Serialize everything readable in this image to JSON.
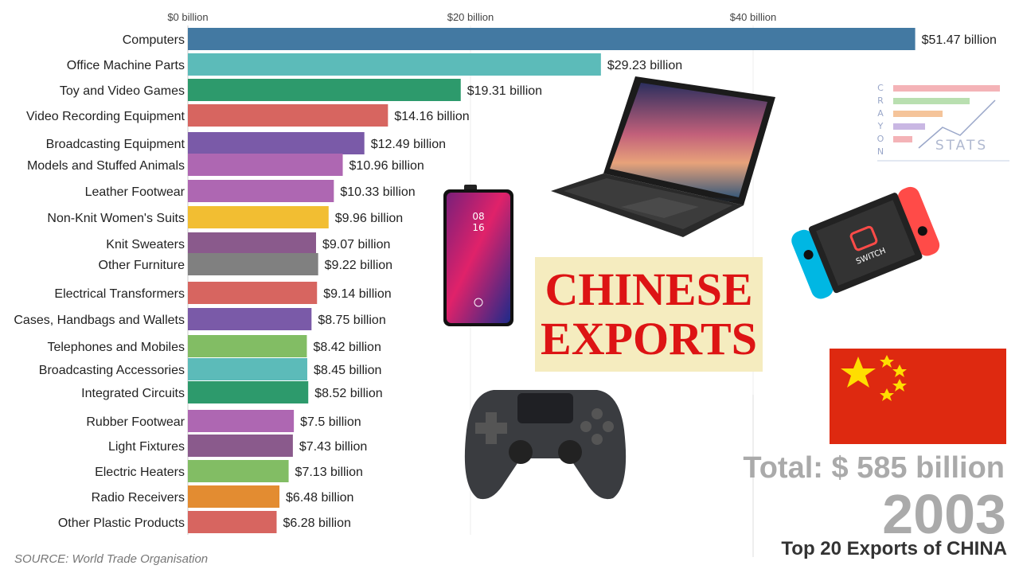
{
  "chart_data": {
    "type": "bar",
    "orientation": "horizontal",
    "xlim": [
      0,
      52
    ],
    "ticks": [
      0,
      20,
      40
    ],
    "tick_labels": [
      "$0 billion",
      "$20 billion",
      "$40 billion"
    ],
    "grid": true,
    "categories": [
      "Computers",
      "Office Machine Parts",
      "Toy and Video Games",
      "Video Recording Equipment",
      "Broadcasting Equipment",
      "Models and Stuffed Animals",
      "Leather Footwear",
      "Non-Knit Women's Suits",
      "Knit Sweaters",
      "Other Furniture",
      "Electrical Transformers",
      "Cases, Handbags and Wallets",
      "Telephones and Mobiles",
      "Broadcasting Accessories",
      "Integrated Circuits",
      "Rubber Footwear",
      "Light Fixtures",
      "Electric Heaters",
      "Radio Receivers",
      "Other Plastic Products"
    ],
    "values": [
      51.47,
      29.23,
      19.31,
      14.16,
      12.49,
      10.96,
      10.33,
      9.96,
      9.07,
      9.22,
      9.14,
      8.75,
      8.42,
      8.45,
      8.52,
      7.5,
      7.43,
      7.13,
      6.48,
      6.28
    ],
    "value_labels": [
      "$51.47 billion",
      "$29.23 billion",
      "$19.31 billion",
      "$14.16 billion",
      "$12.49 billion",
      "$10.96 billion",
      "$10.33 billion",
      "$9.96 billion",
      "$9.07 billion",
      "$9.22 billion",
      "$9.14 billion",
      "$8.75 billion",
      "$8.42 billion",
      "$8.45 billion",
      "$8.52 billion",
      "$7.5 billion",
      "$7.43 billion",
      "$7.13 billion",
      "$6.48 billion",
      "$6.28 billion"
    ],
    "colors": [
      "#4379a2",
      "#5cbbb9",
      "#2d9a6c",
      "#d76560",
      "#7a5aa8",
      "#ae67b2",
      "#ae67b2",
      "#f2be32",
      "#8a5a8c",
      "#808080",
      "#d76560",
      "#7a5aa8",
      "#82bd64",
      "#5cbbb9",
      "#2d9a6c",
      "#ae67b2",
      "#8a5a8c",
      "#82bd64",
      "#e38c31",
      "#d76560"
    ]
  },
  "overlay": {
    "title_line1": "CHINESE",
    "title_line2": "EXPORTS",
    "total": "Total: $ 585 billion",
    "year": "2003",
    "subtitle": "Top 20 Exports of CHINA",
    "source": "SOURCE: World Trade Organisation",
    "logo_letters": "CRAYON",
    "logo_word": "STATS"
  },
  "images": {
    "laptop": "laptop-image",
    "phone": "smartphone-image",
    "console": "handheld-console-image",
    "gamepad": "gamepad-image",
    "flag": "china-flag"
  },
  "colors": {
    "title_red": "#dd1414",
    "title_bg": "#f5ecbf",
    "flag_red": "#de2910",
    "flag_star": "#ffde00"
  }
}
